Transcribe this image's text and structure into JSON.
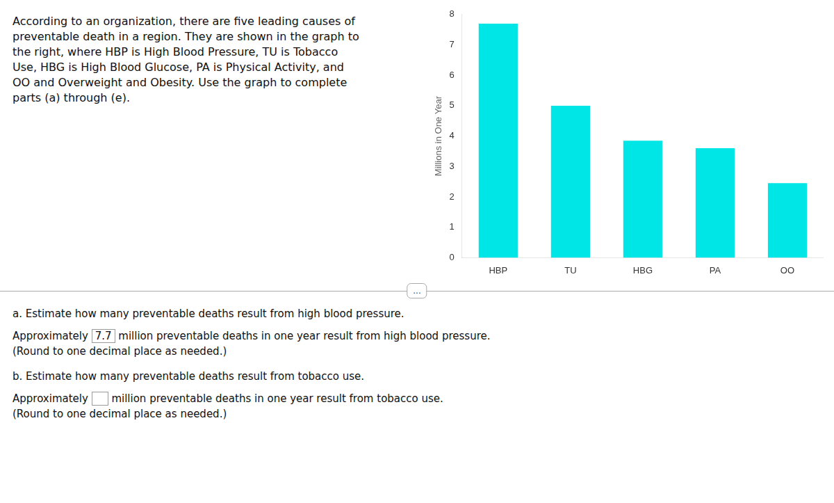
{
  "chart_data": {
    "type": "bar",
    "categories": [
      "HBP",
      "TU",
      "HBG",
      "PA",
      "OO"
    ],
    "values": [
      7.7,
      5.0,
      3.85,
      3.6,
      2.45
    ],
    "color": "#00E5E5",
    "ylabel": "Millions in One Year",
    "ylim": [
      0,
      8
    ],
    "yticks": [
      0,
      1,
      2,
      3,
      4,
      5,
      6,
      7,
      8
    ],
    "grid": false,
    "annotations": [
      [
        "According to an organization, there are five leading causes of",
        "preventable death in a region. They are shown in the graph to",
        "the right, where HBP is High Blood Pressure, TU is Tobacco",
        "Use, HBG is High Blood Glucose, PA is Physical Activity, and",
        "OO and Overweight and Obesity. Use the graph to complete",
        "parts (a) through (e)."
      ],
      [
        "..."
      ],
      [
        "a. Estimate how many preventable deaths result from high blood pressure.",
        [
          "Approximately ",
          [
            "7.7"
          ],
          " million preventable deaths in one year result from high blood pressure."
        ],
        "(Round to one decimal place as needed.)",
        "b. Estimate how many preventable deaths result from tobacco use.",
        [
          "Approximately ",
          [],
          " million preventable deaths in one year result from tobacco use."
        ],
        "(Round to one decimal place as needed.)"
      ]
    ]
  }
}
